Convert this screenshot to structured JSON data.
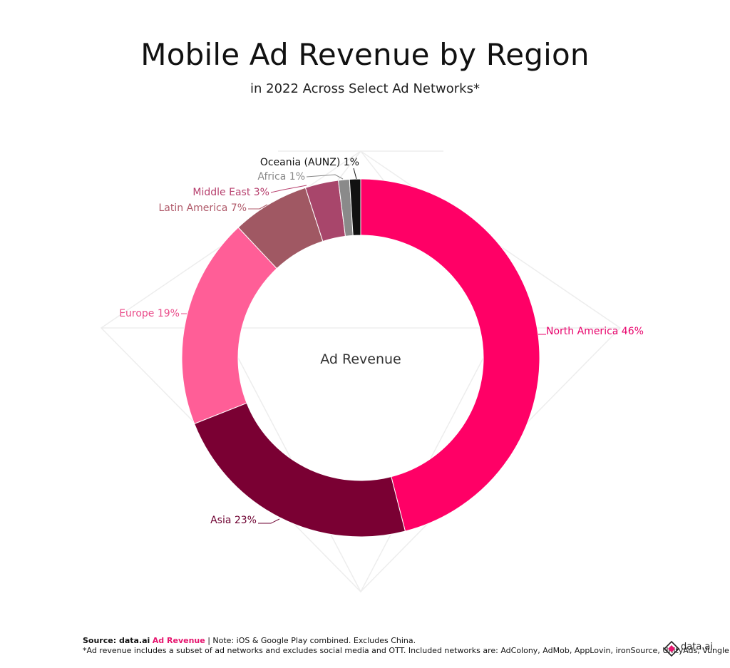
{
  "title": "Mobile Ad Revenue by Region",
  "subtitle": "in 2022 Across Select Ad Networks*",
  "center_label": "Ad Revenue",
  "chart_data": {
    "type": "pie",
    "title": "Mobile Ad Revenue by Region",
    "subtitle": "in 2022 Across Select Ad Networks*",
    "center_label": "Ad Revenue",
    "legend": "none",
    "slices": [
      {
        "name": "North America",
        "value": 46,
        "label": "North America 46%",
        "color": "#ff0066",
        "label_color": "#e8006a"
      },
      {
        "name": "Asia",
        "value": 23,
        "label": "Asia 23%",
        "color": "#7a0033",
        "label_color": "#6d0030"
      },
      {
        "name": "Europe",
        "value": 19,
        "label": "Europe 19%",
        "color": "#ff5e97",
        "label_color": "#ea4c8a"
      },
      {
        "name": "Latin America",
        "value": 7,
        "label": "Latin America 7%",
        "color": "#a05863",
        "label_color": "#b05a6a"
      },
      {
        "name": "Middle East",
        "value": 3,
        "label": "Middle East 3%",
        "color": "#a8466b",
        "label_color": "#b7406e"
      },
      {
        "name": "Africa",
        "value": 1,
        "label": "Africa 1%",
        "color": "#8a8a8a",
        "label_color": "#888888"
      },
      {
        "name": "Oceania (AUNZ)",
        "value": 1,
        "label": "Oceania (AUNZ) 1%",
        "color": "#111111",
        "label_color": "#111111"
      }
    ]
  },
  "footer": {
    "source_prefix": "Source: data.ai",
    "source_link": "Ad Revenue",
    "note": " | Note: iOS & Google Play combined. Excludes China.",
    "footnote": "*Ad revenue includes a subset of ad networks and excludes social media and OTT.  Included networks are: AdColony, AdMob, AppLovin, ironSource, UnityAds, Vungle"
  },
  "logo": {
    "text": "data.ai",
    "icon": "data-ai-logo-icon"
  }
}
